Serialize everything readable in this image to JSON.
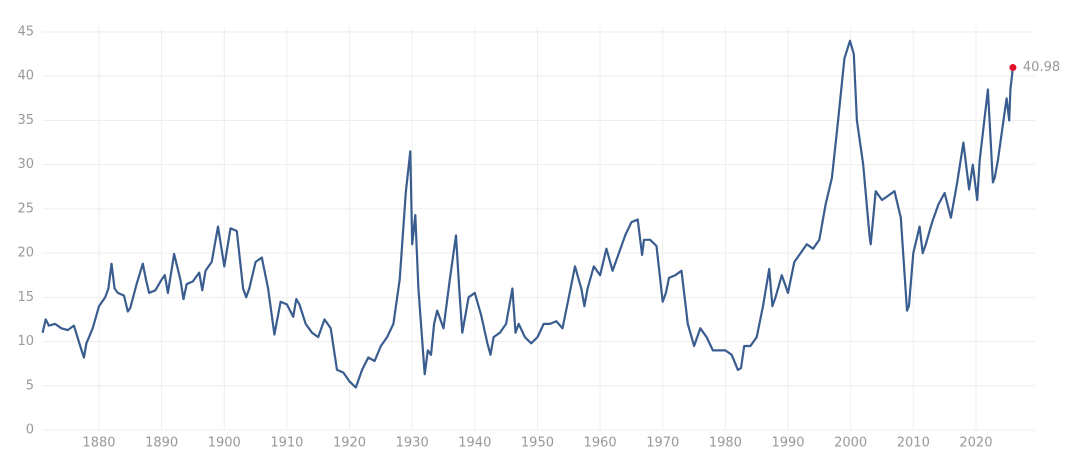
{
  "chart_data": {
    "type": "line",
    "x": [
      1871,
      1871.5,
      1872,
      1873,
      1874,
      1875,
      1876,
      1877,
      1877.6,
      1878,
      1879,
      1880,
      1881,
      1881.5,
      1882,
      1882.5,
      1883,
      1884,
      1884.6,
      1885,
      1886,
      1887,
      1887.5,
      1888,
      1889,
      1890,
      1890.5,
      1891,
      1892,
      1893,
      1893.5,
      1894,
      1895,
      1896,
      1896.5,
      1897,
      1898,
      1899,
      1900,
      1901,
      1902,
      1903,
      1903.5,
      1904,
      1905,
      1906,
      1907,
      1908,
      1909,
      1910,
      1911,
      1911.5,
      1912,
      1913,
      1914,
      1915,
      1916,
      1917,
      1918,
      1919,
      1920,
      1921,
      1922,
      1923,
      1924,
      1925,
      1926,
      1927,
      1928,
      1929,
      1929.7,
      1930,
      1930.5,
      1931,
      1932,
      1932.5,
      1933,
      1933.5,
      1934,
      1935,
      1936,
      1937,
      1937.5,
      1938,
      1939,
      1940,
      1941,
      1942,
      1942.5,
      1943,
      1944,
      1945,
      1946,
      1946.5,
      1947,
      1948,
      1949,
      1950,
      1951,
      1952,
      1953,
      1954,
      1955,
      1956,
      1957,
      1957.5,
      1958,
      1959,
      1960,
      1961,
      1962,
      1963,
      1964,
      1965,
      1966,
      1966.7,
      1967,
      1968,
      1969,
      1970,
      1970.5,
      1971,
      1972,
      1973,
      1974,
      1975,
      1976,
      1977,
      1978,
      1979,
      1980,
      1981,
      1982,
      1982.5,
      1983,
      1984,
      1985,
      1986,
      1987,
      1987.5,
      1988,
      1989,
      1990,
      1991,
      1992,
      1993,
      1994,
      1995,
      1996,
      1997,
      1998,
      1999,
      1999.9,
      2000.5,
      2001,
      2002,
      2003,
      2003.2,
      2004,
      2005,
      2006,
      2007,
      2008,
      2009,
      2009.3,
      2010,
      2011,
      2011.5,
      2012,
      2013,
      2014,
      2015,
      2016,
      2017,
      2018,
      2018.9,
      2019.5,
      2020.2,
      2020.6,
      2021.9,
      2022.7,
      2023,
      2023.5,
      2024,
      2024.9,
      2025.3,
      2025.5,
      2025.9
    ],
    "values": [
      11,
      12.5,
      11.8,
      12,
      11.5,
      11.3,
      11.8,
      9.5,
      8.2,
      9.8,
      11.5,
      14,
      15,
      16,
      18.8,
      16,
      15.5,
      15.2,
      13.4,
      13.8,
      16.5,
      18.8,
      17,
      15.5,
      15.8,
      17,
      17.5,
      15.5,
      19.9,
      17,
      14.8,
      16.5,
      16.8,
      17.8,
      15.8,
      18,
      19,
      23,
      18.5,
      22.8,
      22.5,
      16,
      15,
      16,
      19,
      19.5,
      16,
      10.8,
      14.5,
      14.2,
      12.8,
      14.8,
      14.2,
      12,
      11,
      10.5,
      12.5,
      11.5,
      6.8,
      6.5,
      5.5,
      4.8,
      6.8,
      8.2,
      7.8,
      9.5,
      10.5,
      12,
      17,
      27,
      31.5,
      21,
      24.3,
      16,
      6.3,
      9,
      8.5,
      12,
      13.5,
      11.5,
      17,
      22,
      16,
      11,
      15,
      15.5,
      13,
      9.8,
      8.5,
      10.5,
      11,
      12,
      16,
      11,
      12,
      10.5,
      9.8,
      10.5,
      12,
      12,
      12.3,
      11.5,
      15,
      18.5,
      16,
      14,
      16,
      18.5,
      17.5,
      20.5,
      18,
      20,
      22,
      23.5,
      23.8,
      19.8,
      21.5,
      21.5,
      20.8,
      14.5,
      15.5,
      17.2,
      17.5,
      18,
      12,
      9.5,
      11.5,
      10.5,
      9,
      9,
      9,
      8.5,
      6.8,
      7,
      9.5,
      9.5,
      10.5,
      14,
      18.2,
      14,
      15,
      17.5,
      15.5,
      19,
      20,
      21,
      20.5,
      21.5,
      25.5,
      28.5,
      35,
      42,
      44,
      42.5,
      35,
      30,
      22,
      21,
      27,
      26,
      26.5,
      27,
      24,
      13.5,
      14,
      20,
      23,
      20,
      21,
      23.5,
      25.5,
      26.8,
      24,
      28,
      32.5,
      27.2,
      30,
      26,
      30.5,
      38.5,
      28,
      28.5,
      30.5,
      33,
      37.5,
      35,
      38.5,
      40.98
    ],
    "color": "#3a5d8f",
    "marker_color": "#e0102a",
    "xlim": [
      1871,
      2027
    ],
    "xticks": [
      1880,
      1890,
      1900,
      1910,
      1920,
      1930,
      1940,
      1950,
      1960,
      1970,
      1980,
      1990,
      2000,
      2010,
      2020
    ],
    "ylim": [
      0,
      45
    ],
    "yticks": [
      0,
      5,
      10,
      15,
      20,
      25,
      30,
      35,
      40,
      45
    ],
    "grid": true
  }
}
